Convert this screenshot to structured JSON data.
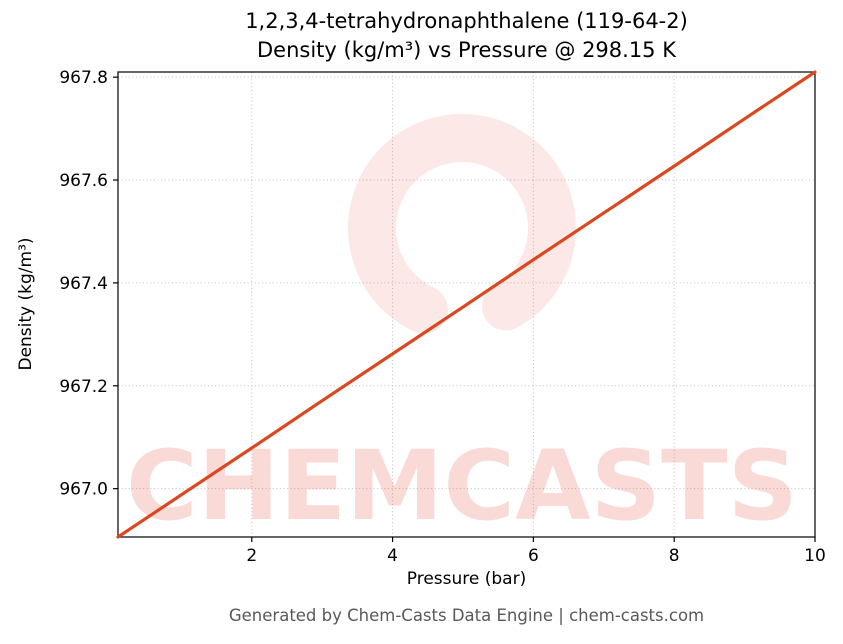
{
  "title": {
    "line1": "1,2,3,4-tetrahydronaphthalene (119-64-2)",
    "line2": "Density (kg/m³) vs Pressure @ 298.15 K"
  },
  "footer": {
    "text": "Generated by Chem-Casts Data Engine | chem-casts.com"
  },
  "watermark": {
    "text": "CHEMCASTS",
    "color": "#e74c3c"
  },
  "chart_data": {
    "type": "line",
    "title": "1,2,3,4-tetrahydronaphthalene (119-64-2) — Density (kg/m³) vs Pressure @ 298.15 K",
    "xlabel": "Pressure (bar)",
    "ylabel": "Density (kg/m³)",
    "xlim": [
      0.1,
      10
    ],
    "ylim": [
      966.906,
      967.81
    ],
    "x_ticks": [
      2,
      4,
      6,
      8,
      10
    ],
    "x_tick_labels": [
      "2",
      "4",
      "6",
      "8",
      "10"
    ],
    "y_ticks": [
      967.0,
      967.2,
      967.4,
      967.6,
      967.8
    ],
    "y_tick_labels": [
      "967.0",
      "967.2",
      "967.4",
      "967.6",
      "967.8"
    ],
    "grid": true,
    "grid_style": "dotted",
    "legend": "none",
    "line_color": "#d9481f",
    "background_color": "#ffffff",
    "series": [
      {
        "name": "Density (kg/m³)",
        "points": [
          [
            0.1,
            966.906
          ],
          [
            1,
            966.988
          ],
          [
            2,
            967.079
          ],
          [
            3,
            967.171
          ],
          [
            4,
            967.262
          ],
          [
            5,
            967.353
          ],
          [
            6,
            967.445
          ],
          [
            7,
            967.536
          ],
          [
            8,
            967.627
          ],
          [
            9,
            967.719
          ],
          [
            10,
            967.81
          ]
        ]
      }
    ]
  }
}
